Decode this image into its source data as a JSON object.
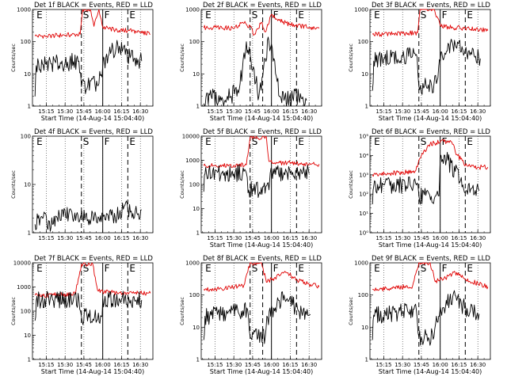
{
  "colors": {
    "events": "#000000",
    "lld": "#e00000",
    "axes": "#000000",
    "background": "#ffffff"
  },
  "chart_data": [
    {
      "type": "line",
      "scale": "log",
      "title": "Det 1f BLACK = Events, RED = LLD",
      "ylabel": "Counts/sec",
      "xlabel": "Start Time (14-Aug-14 15:04:40)",
      "xlim": [
        "15:04",
        "16:40"
      ],
      "xticks": [
        "15:15",
        "15:30",
        "15:45",
        "16:00",
        "16:15",
        "16:30"
      ],
      "ylim": [
        1,
        1000
      ],
      "yticks": [
        "1",
        "10",
        "100",
        "1000"
      ],
      "markers": [
        {
          "label": "E",
          "time": "15:06"
        },
        {
          "label": "S",
          "time": "15:43"
        },
        {
          "label": "F",
          "time": "16:00"
        },
        {
          "label": "E",
          "time": "16:20"
        }
      ],
      "vlines_dashed": [
        "15:43",
        "16:20"
      ],
      "vlines_solid": [
        "16:00"
      ],
      "series": [
        {
          "name": "LLD",
          "x": [
            "15:06",
            "15:15",
            "15:30",
            "15:42",
            "15:44",
            "15:50",
            "15:53",
            "15:57",
            "16:00",
            "16:10",
            "16:20",
            "16:30",
            "16:38"
          ],
          "y": [
            150,
            150,
            160,
            170,
            1000,
            1000,
            300,
            1000,
            280,
            230,
            220,
            200,
            170
          ]
        },
        {
          "name": "Events",
          "x": [
            "15:06",
            "15:07",
            "15:15",
            "15:30",
            "15:41",
            "15:43",
            "15:57",
            "16:00",
            "16:05",
            "16:12",
            "16:18",
            "16:25",
            "16:31"
          ],
          "y": [
            2,
            18,
            20,
            22,
            25,
            4,
            5,
            18,
            40,
            80,
            40,
            30,
            25
          ]
        }
      ]
    },
    {
      "type": "line",
      "scale": "log",
      "title": "Det 2f BLACK = Events, RED = LLD",
      "ylabel": "Counts/sec",
      "xlabel": "Start Time (14-Aug-14 15:04:40)",
      "xlim": [
        "15:04",
        "16:40"
      ],
      "xticks": [
        "15:15",
        "15:30",
        "15:45",
        "16:00",
        "16:15",
        "16:30"
      ],
      "ylim": [
        1,
        1000
      ],
      "yticks": [
        "1",
        "10",
        "100",
        "1000"
      ],
      "markers": [
        {
          "label": "E",
          "time": "15:06"
        },
        {
          "label": "S",
          "time": "15:43"
        },
        {
          "label": "F",
          "time": "16:00"
        },
        {
          "label": "E",
          "time": "16:20"
        }
      ],
      "vlines_dashed": [
        "15:43",
        "15:53",
        "16:20"
      ],
      "vlines_solid": [
        "16:00"
      ],
      "series": [
        {
          "name": "LLD",
          "x": [
            "15:06",
            "15:15",
            "15:30",
            "15:37",
            "15:43",
            "15:46",
            "15:52",
            "15:55",
            "16:00",
            "16:05",
            "16:15",
            "16:30",
            "16:38"
          ],
          "y": [
            270,
            280,
            260,
            400,
            300,
            160,
            400,
            200,
            700,
            450,
            350,
            280,
            260
          ]
        },
        {
          "name": "Events",
          "x": [
            "15:06",
            "15:12",
            "15:20",
            "15:28",
            "15:35",
            "15:40",
            "15:43",
            "15:50",
            "15:55",
            "15:58",
            "16:02",
            "16:07",
            "16:10",
            "16:20",
            "16:28"
          ],
          "y": [
            1.2,
            2,
            1.5,
            2,
            5,
            100,
            40,
            2,
            30,
            100,
            30,
            2,
            1.5,
            2,
            1.5
          ]
        }
      ]
    },
    {
      "type": "line",
      "scale": "log",
      "title": "Det 3f BLACK = Events, RED = LLD",
      "ylabel": "Counts/sec",
      "xlabel": "Start Time (14-Aug-14 15:04:40)",
      "xlim": [
        "15:04",
        "16:40"
      ],
      "xticks": [
        "15:15",
        "15:30",
        "15:45",
        "16:00",
        "16:15",
        "16:30"
      ],
      "ylim": [
        1,
        1000
      ],
      "yticks": [
        "1",
        "10",
        "100",
        "1000"
      ],
      "markers": [
        {
          "label": "E",
          "time": "15:06"
        },
        {
          "label": "S",
          "time": "15:43"
        },
        {
          "label": "F",
          "time": "16:00"
        },
        {
          "label": "E",
          "time": "16:20"
        }
      ],
      "vlines_dashed": [
        "15:43",
        "16:20"
      ],
      "vlines_solid": [
        "16:00"
      ],
      "series": [
        {
          "name": "LLD",
          "x": [
            "15:06",
            "15:15",
            "15:30",
            "15:42",
            "15:44",
            "15:55",
            "16:00",
            "16:10",
            "16:20",
            "16:30",
            "16:38"
          ],
          "y": [
            170,
            170,
            180,
            190,
            1000,
            1000,
            320,
            270,
            260,
            240,
            220
          ]
        },
        {
          "name": "Events",
          "x": [
            "15:06",
            "15:07",
            "15:15",
            "15:30",
            "15:41",
            "15:43",
            "15:57",
            "16:00",
            "16:05",
            "16:12",
            "16:18",
            "16:25",
            "16:32"
          ],
          "y": [
            3,
            25,
            30,
            35,
            40,
            4,
            5,
            25,
            50,
            80,
            55,
            40,
            30
          ]
        }
      ]
    },
    {
      "type": "line",
      "scale": "log",
      "title": "Det 4f BLACK = Events, RED = LLD",
      "ylabel": "Counts/sec",
      "xlabel": "",
      "xlim": [
        "15:04",
        "16:40"
      ],
      "xticks": [
        "15:15",
        "15:30",
        "15:45",
        "16:00",
        "16:15",
        "16:30"
      ],
      "ylim": [
        1,
        100
      ],
      "yticks": [
        "1",
        "10",
        "100"
      ],
      "markers": [
        {
          "label": "E",
          "time": "15:06"
        },
        {
          "label": "S",
          "time": "15:43"
        },
        {
          "label": "F",
          "time": "16:00"
        },
        {
          "label": "E",
          "time": "16:20"
        }
      ],
      "vlines_dashed": [
        "15:43",
        "16:20"
      ],
      "vlines_solid": [
        "16:00"
      ],
      "series": [
        {
          "name": "Events",
          "x": [
            "15:06",
            "15:12",
            "15:20",
            "15:28",
            "15:36",
            "15:42",
            "15:57",
            "16:03",
            "16:10",
            "16:17",
            "16:24",
            "16:31"
          ],
          "y": [
            1.5,
            2,
            1.5,
            3,
            2,
            2,
            2,
            2.5,
            2,
            3.5,
            2.5,
            3
          ]
        }
      ]
    },
    {
      "type": "line",
      "scale": "log",
      "title": "Det 5f BLACK = Events, RED = LLD",
      "ylabel": "Counts/sec",
      "xlabel": "Start Time (14-Aug-14 15:04:40)",
      "xlim": [
        "15:04",
        "16:40"
      ],
      "xticks": [
        "15:15",
        "15:30",
        "15:45",
        "16:00",
        "16:15",
        "16:30"
      ],
      "ylim": [
        1,
        10000
      ],
      "yticks": [
        "1",
        "10",
        "100",
        "1000",
        "10000"
      ],
      "markers": [
        {
          "label": "E",
          "time": "15:06"
        },
        {
          "label": "S",
          "time": "15:43"
        },
        {
          "label": "F",
          "time": "16:00"
        },
        {
          "label": "E",
          "time": "16:20"
        }
      ],
      "vlines_dashed": [
        "15:43",
        "16:20"
      ],
      "vlines_solid": [
        "16:00"
      ],
      "series": [
        {
          "name": "LLD",
          "x": [
            "15:06",
            "15:15",
            "15:30",
            "15:40",
            "15:43",
            "15:56",
            "15:58",
            "16:05",
            "16:20",
            "16:30",
            "16:38"
          ],
          "y": [
            600,
            600,
            620,
            650,
            9000,
            9000,
            900,
            800,
            750,
            720,
            700
          ]
        },
        {
          "name": "Events",
          "x": [
            "15:06",
            "15:07",
            "15:20",
            "15:40",
            "15:42",
            "15:58",
            "15:59",
            "16:10",
            "16:20",
            "16:30"
          ],
          "y": [
            50,
            280,
            290,
            300,
            60,
            60,
            300,
            310,
            300,
            280
          ]
        }
      ]
    },
    {
      "type": "line",
      "scale": "log",
      "title": "Det 6f BLACK = Events, RED = LLD",
      "ylabel": "Counts/sec",
      "xlabel": "Start Time (14-Aug-14 15:04:40)",
      "xlim": [
        "15:04",
        "16:40"
      ],
      "xticks": [
        "15:15",
        "15:30",
        "15:45",
        "16:00",
        "16:15",
        "16:30"
      ],
      "ylim": [
        1,
        100000
      ],
      "yticks": [
        "10⁰",
        "10¹",
        "10²",
        "10³",
        "10⁴",
        "10⁵"
      ],
      "markers": [
        {
          "label": "E",
          "time": "15:06"
        },
        {
          "label": "S",
          "time": "15:43"
        },
        {
          "label": "F",
          "time": "16:00"
        },
        {
          "label": "E",
          "time": "16:20"
        }
      ],
      "vlines_dashed": [
        "15:43",
        "16:20"
      ],
      "vlines_solid": [
        "16:00"
      ],
      "series": [
        {
          "name": "LLD",
          "x": [
            "15:06",
            "15:20",
            "15:40",
            "15:45",
            "15:52",
            "16:00",
            "16:08",
            "16:14",
            "16:20",
            "16:30",
            "16:38"
          ],
          "y": [
            1000,
            1200,
            1500,
            10000,
            40000,
            50000,
            60000,
            10000,
            3000,
            2500,
            2500
          ]
        },
        {
          "name": "Events",
          "x": [
            "15:06",
            "15:07",
            "15:20",
            "15:41",
            "15:43",
            "15:59",
            "16:00",
            "16:05",
            "16:12",
            "16:18",
            "16:25",
            "16:31"
          ],
          "y": [
            30,
            250,
            280,
            300,
            80,
            80,
            8000,
            6000,
            1500,
            300,
            200,
            150
          ]
        }
      ]
    },
    {
      "type": "line",
      "scale": "log",
      "title": "Det 7f BLACK = Events, RED = LLD",
      "ylabel": "Counts/sec",
      "xlabel": "Start Time (14-Aug-14 15:04:40)",
      "xlim": [
        "15:04",
        "16:40"
      ],
      "xticks": [
        "15:15",
        "15:30",
        "15:45",
        "16:00",
        "16:15",
        "16:30"
      ],
      "ylim": [
        1,
        10000
      ],
      "yticks": [
        "1",
        "10",
        "100",
        "1000",
        "10000"
      ],
      "markers": [
        {
          "label": "E",
          "time": "15:06"
        },
        {
          "label": "S",
          "time": "15:43"
        },
        {
          "label": "F",
          "time": "16:00"
        },
        {
          "label": "E",
          "time": "16:20"
        }
      ],
      "vlines_dashed": [
        "15:43",
        "16:20"
      ],
      "vlines_solid": [
        "16:00"
      ],
      "series": [
        {
          "name": "LLD",
          "x": [
            "15:06",
            "15:20",
            "15:38",
            "15:43",
            "15:52",
            "15:56",
            "16:05",
            "16:20",
            "16:30",
            "16:38"
          ],
          "y": [
            450,
            470,
            500,
            9000,
            9000,
            700,
            600,
            580,
            560,
            550
          ]
        },
        {
          "name": "Events",
          "x": [
            "15:06",
            "15:07",
            "15:20",
            "15:41",
            "15:43",
            "15:59",
            "16:00",
            "16:15",
            "16:31"
          ],
          "y": [
            40,
            280,
            300,
            310,
            60,
            60,
            320,
            300,
            290
          ]
        }
      ]
    },
    {
      "type": "line",
      "scale": "log",
      "title": "Det 8f BLACK = Events, RED = LLD",
      "ylabel": "Counts/sec",
      "xlabel": "Start Time (14-Aug-14 15:04:40)",
      "xlim": [
        "15:04",
        "16:40"
      ],
      "xticks": [
        "15:15",
        "15:30",
        "15:45",
        "16:00",
        "16:15",
        "16:30"
      ],
      "ylim": [
        1,
        1000
      ],
      "yticks": [
        "1",
        "10",
        "100",
        "1000"
      ],
      "markers": [
        {
          "label": "E",
          "time": "15:06"
        },
        {
          "label": "S",
          "time": "15:43"
        },
        {
          "label": "F",
          "time": "16:00"
        },
        {
          "label": "E",
          "time": "16:20"
        }
      ],
      "vlines_dashed": [
        "15:43",
        "15:53",
        "16:20"
      ],
      "vlines_solid": [
        "16:00"
      ],
      "series": [
        {
          "name": "LLD",
          "x": [
            "15:06",
            "15:20",
            "15:38",
            "15:43",
            "15:52",
            "15:56",
            "16:03",
            "16:12",
            "16:20",
            "16:30",
            "16:38"
          ],
          "y": [
            150,
            160,
            200,
            1000,
            1000,
            250,
            350,
            500,
            300,
            220,
            180
          ]
        },
        {
          "name": "Events",
          "x": [
            "15:06",
            "15:07",
            "15:20",
            "15:41",
            "15:43",
            "15:55",
            "15:57",
            "16:03",
            "16:10",
            "16:17",
            "16:24",
            "16:31"
          ],
          "y": [
            4,
            22,
            25,
            35,
            5,
            5,
            20,
            40,
            100,
            50,
            30,
            25
          ]
        }
      ]
    },
    {
      "type": "line",
      "scale": "log",
      "title": "Det 9f BLACK = Events, RED = LLD",
      "ylabel": "Counts/sec",
      "xlabel": "Start Time (14-Aug-14 15:04:40)",
      "xlim": [
        "15:04",
        "16:40"
      ],
      "xticks": [
        "15:15",
        "15:30",
        "15:45",
        "16:00",
        "16:15",
        "16:30"
      ],
      "ylim": [
        1,
        1000
      ],
      "yticks": [
        "1",
        "10",
        "100",
        "1000"
      ],
      "markers": [
        {
          "label": "E",
          "time": "15:06"
        },
        {
          "label": "S",
          "time": "15:43"
        },
        {
          "label": "F",
          "time": "16:00"
        },
        {
          "label": "E",
          "time": "16:20"
        }
      ],
      "vlines_dashed": [
        "15:43",
        "16:20"
      ],
      "vlines_solid": [
        "16:00"
      ],
      "series": [
        {
          "name": "LLD",
          "x": [
            "15:06",
            "15:20",
            "15:38",
            "15:43",
            "15:52",
            "15:56",
            "16:03",
            "16:12",
            "16:20",
            "16:30",
            "16:38"
          ],
          "y": [
            150,
            160,
            190,
            1000,
            1000,
            260,
            330,
            500,
            300,
            230,
            180
          ]
        },
        {
          "name": "Events",
          "x": [
            "15:06",
            "15:07",
            "15:20",
            "15:41",
            "15:43",
            "15:55",
            "15:57",
            "16:03",
            "16:10",
            "16:17",
            "16:24",
            "16:31"
          ],
          "y": [
            4,
            24,
            26,
            34,
            5,
            5,
            22,
            40,
            90,
            50,
            32,
            26
          ]
        }
      ]
    }
  ]
}
